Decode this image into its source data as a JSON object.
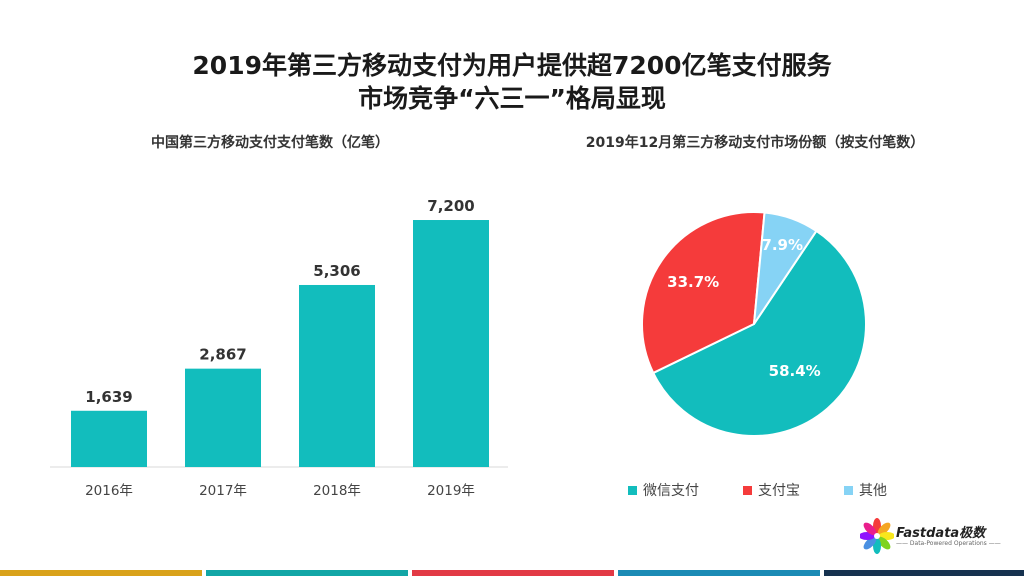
{
  "title": {
    "line1": "2019年第三方移动支付为用户提供超7200亿笔支付服务",
    "line2": "市场竞争“六三一”格局显现"
  },
  "logo": {
    "name": "Fastdata极数",
    "tagline": "—— Data-Powered Operations ——"
  },
  "colors": {
    "teal": "#12BDBD",
    "red": "#F53B3B",
    "lightblue": "#86D3F5",
    "footer": [
      "#D9A21A",
      "#12A6A6",
      "#E23A45",
      "#1B8BB5",
      "#16324F"
    ]
  },
  "chart_data": [
    {
      "type": "bar",
      "title": "中国第三方移动支付支付笔数（亿笔）",
      "categories": [
        "2016年",
        "2017年",
        "2018年",
        "2019年"
      ],
      "values": [
        1639,
        2867,
        5306,
        7200
      ],
      "value_labels": [
        "1,639",
        "2,867",
        "5,306",
        "7,200"
      ],
      "ylim": [
        0,
        7900
      ],
      "grid": false
    },
    {
      "type": "pie",
      "title": "2019年12月第三方移动支付市场份额（按支付笔数）",
      "labels": [
        "微信支付",
        "支付宝",
        "其他"
      ],
      "values": [
        58.4,
        33.7,
        7.9
      ],
      "value_labels": [
        "58.4%",
        "33.7%",
        "7.9%"
      ],
      "legend": "bottom"
    }
  ]
}
